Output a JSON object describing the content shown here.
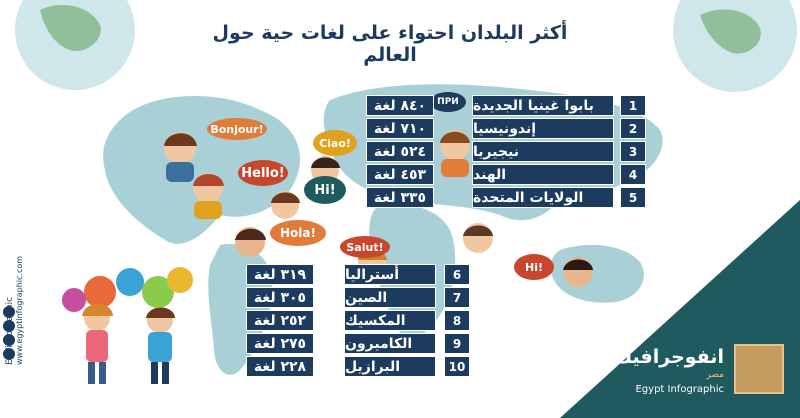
{
  "title": "أكثر البلدان احتواء على لغات حية حول العالم",
  "top_list": [
    {
      "rank": "1",
      "country": "بابوا غينيا الجديدة",
      "count": "٨٤٠ لغة"
    },
    {
      "rank": "2",
      "country": "إندونيسيا",
      "count": "٧١٠ لغة"
    },
    {
      "rank": "3",
      "country": "نيجيريا",
      "count": "٥٢٤ لغة"
    },
    {
      "rank": "4",
      "country": "الهند",
      "count": "٤٥٣ لغة"
    },
    {
      "rank": "5",
      "country": "الولايات المتحدة",
      "count": "٣٣٥ لغة"
    }
  ],
  "bottom_list": [
    {
      "rank": "6",
      "country": "أستراليا",
      "count": "٣١٩ لغة"
    },
    {
      "rank": "7",
      "country": "الصين",
      "count": "٣٠٥ لغة"
    },
    {
      "rank": "8",
      "country": "المكسيك",
      "count": "٢٥٢ لغة"
    },
    {
      "rank": "9",
      "country": "الكاميرون",
      "count": "٢٧٥ لغة"
    },
    {
      "rank": "10",
      "country": "البرازيل",
      "count": "٢٢٨ لغة"
    }
  ],
  "bubbles": {
    "bonjour": "Bonjour!",
    "hello": "Hello!",
    "ciao": "Ciao!",
    "hi": "Hi!",
    "hola": "Hola!",
    "salut": "Salut!",
    "hi2": "Hi!",
    "privet": "ПРИ"
  },
  "side": {
    "handle": "EGYinfographic",
    "site": "www.egyptinfographic.com"
  },
  "brand": {
    "arabic": "انفوجرافيك",
    "sub": "مصر",
    "english": "Egypt Infographic"
  },
  "colors": {
    "navy": "#1d3a5f",
    "teal": "#1f5a5e",
    "map": "#a9d0d6",
    "gold": "#c59a5d"
  }
}
